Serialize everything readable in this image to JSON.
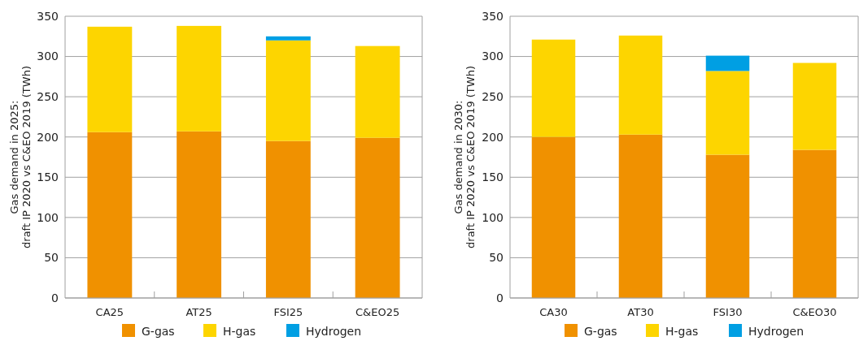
{
  "chart_data": [
    {
      "type": "bar",
      "stacked": true,
      "ylabel": "Gas demand in 2025:\ndraft IP 2020 vs C&EO 2019 (TWh)",
      "categories": [
        "CA25",
        "AT25",
        "FSI25",
        "C&EO25"
      ],
      "ylim": [
        0,
        350
      ],
      "yticks": [
        0,
        50,
        100,
        150,
        200,
        250,
        300,
        350
      ],
      "grid": "y",
      "legend": "bottom",
      "series": [
        {
          "name": "G-gas",
          "color": "#f09100",
          "values": [
            206,
            207,
            195,
            199
          ]
        },
        {
          "name": "H-gas",
          "color": "#fdd500",
          "values": [
            131,
            131,
            125,
            114
          ]
        },
        {
          "name": "Hydrogen",
          "color": "#009fe3",
          "values": [
            null,
            null,
            5,
            null
          ]
        }
      ]
    },
    {
      "type": "bar",
      "stacked": true,
      "ylabel": "Gas demand in 2030:\ndraft IP 2020 vs C&EO 2019 (TWh)",
      "categories": [
        "CA30",
        "AT30",
        "FSI30",
        "C&EO30"
      ],
      "ylim": [
        0,
        350
      ],
      "yticks": [
        0,
        50,
        100,
        150,
        200,
        250,
        300,
        350
      ],
      "grid": "y",
      "legend": "bottom",
      "series": [
        {
          "name": "G-gas",
          "color": "#f09100",
          "values": [
            200,
            203,
            178,
            184
          ]
        },
        {
          "name": "H-gas",
          "color": "#fdd500",
          "values": [
            121,
            123,
            104,
            108
          ]
        },
        {
          "name": "Hydrogen",
          "color": "#009fe3",
          "values": [
            null,
            null,
            19,
            null
          ]
        }
      ]
    }
  ]
}
